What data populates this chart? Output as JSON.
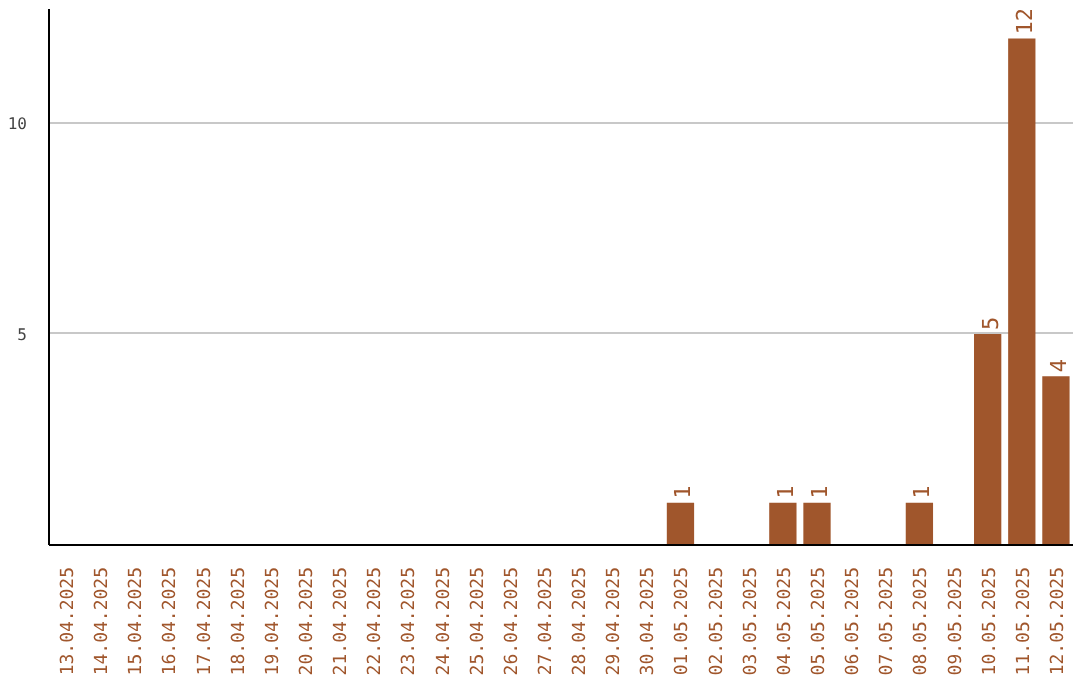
{
  "chart_data": {
    "type": "bar",
    "categories": [
      "13.04.2025",
      "14.04.2025",
      "15.04.2025",
      "16.04.2025",
      "17.04.2025",
      "18.04.2025",
      "19.04.2025",
      "20.04.2025",
      "21.04.2025",
      "22.04.2025",
      "23.04.2025",
      "24.04.2025",
      "25.04.2025",
      "26.04.2025",
      "27.04.2025",
      "28.04.2025",
      "29.04.2025",
      "30.04.2025",
      "01.05.2025",
      "02.05.2025",
      "03.05.2025",
      "04.05.2025",
      "05.05.2025",
      "06.05.2025",
      "07.05.2025",
      "08.05.2025",
      "09.05.2025",
      "10.05.2025",
      "11.05.2025",
      "12.05.2025"
    ],
    "values": [
      0,
      0,
      0,
      0,
      0,
      0,
      0,
      0,
      0,
      0,
      0,
      0,
      0,
      0,
      0,
      0,
      0,
      0,
      1,
      0,
      0,
      1,
      1,
      0,
      0,
      1,
      0,
      5,
      12,
      4
    ],
    "value_labels": [
      null,
      null,
      null,
      null,
      null,
      null,
      null,
      null,
      null,
      null,
      null,
      null,
      null,
      null,
      null,
      null,
      null,
      null,
      "1",
      null,
      null,
      "1",
      "1",
      null,
      null,
      "1",
      null,
      "5",
      "12",
      "4"
    ],
    "color": "#a0562c",
    "ylim": [
      0,
      12.7
    ],
    "yticks": [
      5,
      10
    ],
    "grid": "y"
  }
}
